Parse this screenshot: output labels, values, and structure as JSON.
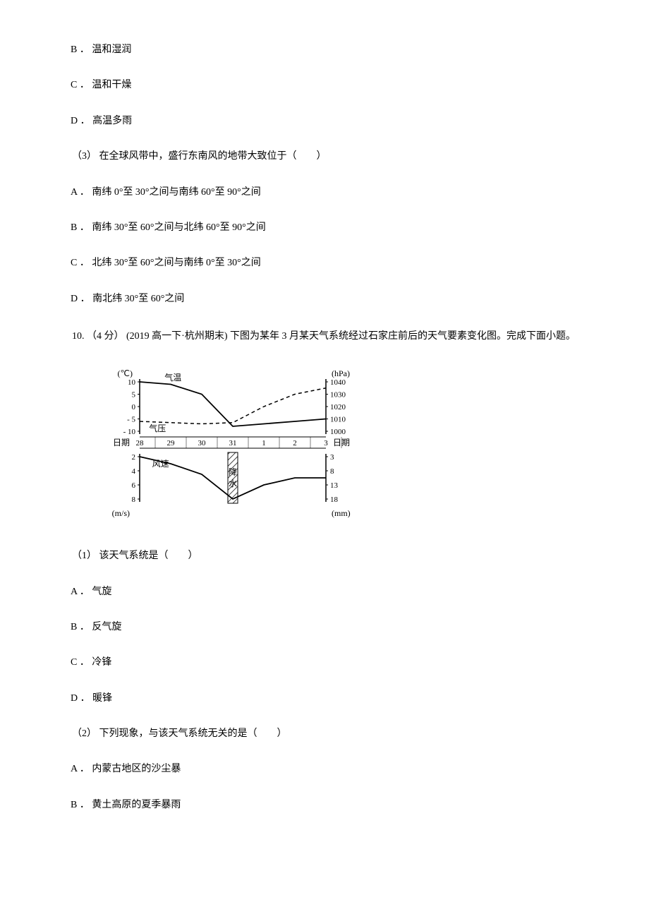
{
  "q9_options": {
    "b": "B ． 温和湿润",
    "c": "C ． 温和干燥",
    "d": "D ． 高温多雨"
  },
  "q9_sub3": {
    "stem": "（3） 在全球风带中，盛行东南风的地带大致位于（　　）",
    "a": "A ． 南纬 0°至 30°之间与南纬 60°至 90°之间",
    "b": "B ． 南纬 30°至 60°之间与北纬 60°至 90°之间",
    "c": "C ． 北纬 30°至 60°之间与南纬 0°至 30°之间",
    "d": "D ． 南北纬 30°至 60°之间"
  },
  "q10": {
    "intro": "10. （4 分） (2019 高一下·杭州期末) 下图为某年 3 月某天气系统经过石家庄前后的天气要素变化图。完成下面小题。",
    "sub1": {
      "stem": "（1） 该天气系统是（　　）",
      "a": "A ． 气旋",
      "b": "B ． 反气旋",
      "c": "C ． 冷锋",
      "d": "D ． 暖锋"
    },
    "sub2": {
      "stem": "（2） 下列现象，与该天气系统无关的是（　　）",
      "a": "A ． 内蒙古地区的沙尘暴",
      "b": "B ． 黄土高原的夏季暴雨"
    }
  },
  "chart": {
    "left_axis_top": {
      "unit": "(℃)",
      "ticks": [
        "10",
        "5",
        "0",
        "- 5",
        "- 10"
      ]
    },
    "right_axis_top": {
      "unit": "(hPa)",
      "ticks": [
        "1040",
        "1030",
        "1020",
        "1010",
        "1000"
      ]
    },
    "date_label": "日期",
    "dates": [
      "28",
      "29",
      "30",
      "31",
      "1",
      "2",
      "3"
    ],
    "left_axis_bottom": {
      "unit": "(m/s)",
      "ticks": [
        "2",
        "4",
        "6",
        "8"
      ]
    },
    "right_axis_bottom": {
      "unit": "(mm)",
      "ticks": [
        "3",
        "8",
        "13",
        "18"
      ]
    },
    "labels": {
      "temp": "气温",
      "pressure": "气压",
      "wind": "风速",
      "precip": "降水"
    },
    "colors": {
      "line": "#000000",
      "bg": "#ffffff",
      "hatch": "#000000"
    },
    "temp_points": [
      [
        0,
        10
      ],
      [
        1,
        9
      ],
      [
        2,
        5
      ],
      [
        3,
        -8
      ],
      [
        4,
        -7
      ],
      [
        5,
        -6
      ],
      [
        6,
        -5
      ]
    ],
    "pressure_points": [
      [
        0,
        1008
      ],
      [
        1,
        1007
      ],
      [
        2,
        1006
      ],
      [
        3,
        1007
      ],
      [
        4,
        1020
      ],
      [
        5,
        1030
      ],
      [
        6,
        1035
      ]
    ],
    "wind_points": [
      [
        0,
        2
      ],
      [
        1,
        3
      ],
      [
        2,
        4.5
      ],
      [
        3,
        8
      ],
      [
        4,
        6
      ],
      [
        5,
        5
      ],
      [
        6,
        5
      ]
    ],
    "temp_y_range": [
      -10,
      10
    ],
    "pressure_y_range": [
      1000,
      1040
    ],
    "wind_y_range": [
      2,
      8
    ]
  }
}
